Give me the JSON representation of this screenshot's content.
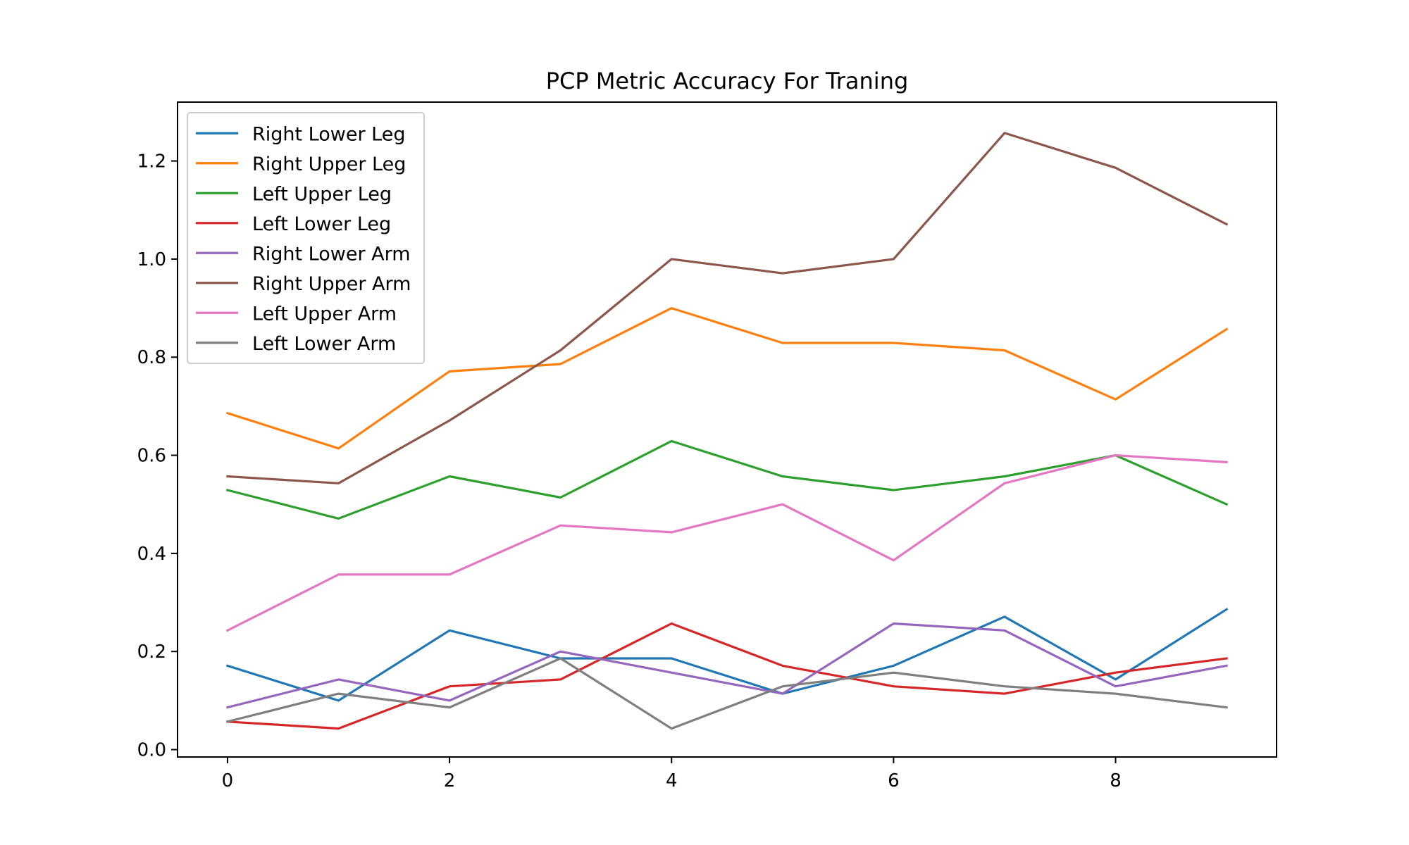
{
  "chart_data": {
    "type": "line",
    "title": "PCP Metric Accuracy For Traning",
    "xlabel": "",
    "ylabel": "",
    "x": [
      0,
      1,
      2,
      3,
      4,
      5,
      6,
      7,
      8,
      9
    ],
    "xlim": [
      -0.45,
      9.45
    ],
    "ylim": [
      -0.015,
      1.32
    ],
    "xticks": [
      0,
      2,
      4,
      6,
      8
    ],
    "xtick_labels": [
      "0",
      "2",
      "4",
      "6",
      "8"
    ],
    "yticks": [
      0.0,
      0.2,
      0.4,
      0.6,
      0.8,
      1.0,
      1.2
    ],
    "ytick_labels": [
      "0.0",
      "0.2",
      "0.4",
      "0.6",
      "0.8",
      "1.0",
      "1.2"
    ],
    "grid": false,
    "legend_position": "top-left",
    "series": [
      {
        "name": "Right Lower Leg",
        "color": "#1f77b4",
        "values": [
          0.171,
          0.1,
          0.243,
          0.186,
          0.186,
          0.114,
          0.171,
          0.271,
          0.143,
          0.286
        ]
      },
      {
        "name": "Right Upper Leg",
        "color": "#ff7f0e",
        "values": [
          0.686,
          0.614,
          0.771,
          0.786,
          0.9,
          0.829,
          0.829,
          0.814,
          0.714,
          0.857
        ]
      },
      {
        "name": "Left Upper Leg",
        "color": "#2ca02c",
        "values": [
          0.529,
          0.471,
          0.557,
          0.514,
          0.629,
          0.557,
          0.529,
          0.557,
          0.6,
          0.5
        ]
      },
      {
        "name": "Left Lower Leg",
        "color": "#d62728",
        "values": [
          0.057,
          0.043,
          0.129,
          0.143,
          0.257,
          0.171,
          0.129,
          0.114,
          0.157,
          0.186
        ]
      },
      {
        "name": "Right Lower Arm",
        "color": "#9467bd",
        "values": [
          0.086,
          0.143,
          0.1,
          0.2,
          0.157,
          0.114,
          0.257,
          0.243,
          0.129,
          0.171
        ]
      },
      {
        "name": "Right Upper Arm",
        "color": "#8c564b",
        "values": [
          0.557,
          0.543,
          0.671,
          0.814,
          1.0,
          0.971,
          1.0,
          1.257,
          1.186,
          1.071
        ]
      },
      {
        "name": "Left Upper Arm",
        "color": "#e377c2",
        "values": [
          0.243,
          0.357,
          0.357,
          0.457,
          0.443,
          0.5,
          0.386,
          0.543,
          0.6,
          0.586
        ]
      },
      {
        "name": "Left Lower Arm",
        "color": "#7f7f7f",
        "values": [
          0.057,
          0.114,
          0.086,
          0.186,
          0.043,
          0.129,
          0.157,
          0.129,
          0.114,
          0.086
        ]
      }
    ]
  }
}
